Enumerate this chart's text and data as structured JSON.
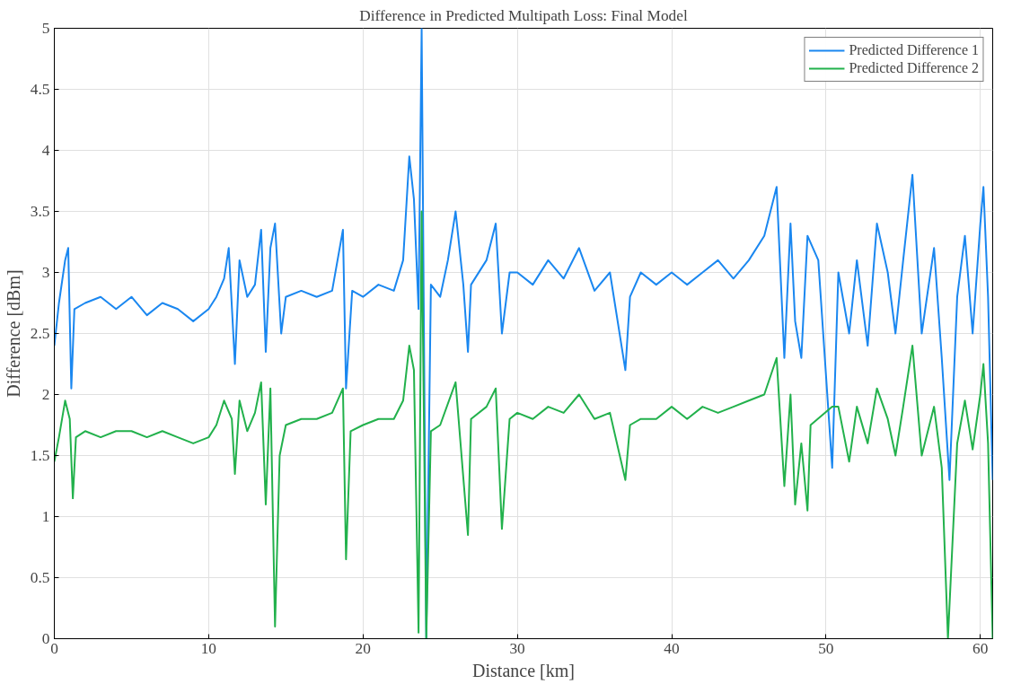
{
  "chart_data": {
    "type": "line",
    "title": "Difference in Predicted Multipath Loss: Final Model",
    "xlabel": "Distance [km]",
    "ylabel": "Difference [dBm]",
    "xlim": [
      0,
      60.8
    ],
    "xticks": [
      0,
      10,
      20,
      30,
      40,
      50,
      60
    ],
    "ylim": [
      0,
      5
    ],
    "yticks": [
      0,
      0.5,
      1,
      1.5,
      2,
      2.5,
      3,
      3.5,
      4,
      4.5,
      5
    ],
    "grid": true,
    "legend": "top right",
    "line_style": "solid",
    "marker": "none",
    "series": [
      {
        "name": "Predicted Difference 1",
        "color": "#1a87f0",
        "x": [
          0,
          0.3,
          0.7,
          0.9,
          1.1,
          1.3,
          2,
          3,
          4,
          5,
          6,
          7,
          8,
          9,
          10,
          10.5,
          11,
          11.3,
          11.7,
          12,
          12.5,
          13,
          13.4,
          13.7,
          14,
          14.3,
          14.7,
          15,
          16,
          17,
          18,
          18.7,
          18.9,
          19.3,
          20,
          21,
          22,
          22.6,
          23,
          23.3,
          23.6,
          23.8,
          24.1,
          24.4,
          25,
          25.5,
          26,
          26.5,
          26.8,
          27,
          28,
          28.6,
          29,
          29.5,
          30,
          31,
          32,
          33,
          34,
          35,
          36,
          37,
          37.3,
          38,
          39,
          40,
          41,
          42,
          43,
          44,
          45,
          46,
          46.8,
          47.3,
          47.7,
          48,
          48.4,
          48.8,
          49.5,
          50.4,
          50.8,
          51.5,
          52,
          52.7,
          53.3,
          54,
          54.5,
          55,
          55.6,
          56.2,
          57,
          57.5,
          58,
          58.5,
          59,
          59.5,
          60,
          60.2,
          60.5,
          60.8
        ],
        "values": [
          2.4,
          2.75,
          3.1,
          3.2,
          2.05,
          2.7,
          2.75,
          2.8,
          2.7,
          2.8,
          2.65,
          2.75,
          2.7,
          2.6,
          2.7,
          2.8,
          2.95,
          3.2,
          2.25,
          3.1,
          2.8,
          2.9,
          3.35,
          2.35,
          3.2,
          3.4,
          2.5,
          2.8,
          2.85,
          2.8,
          2.85,
          3.35,
          2.05,
          2.85,
          2.8,
          2.9,
          2.85,
          3.1,
          3.95,
          3.6,
          2.7,
          5,
          0,
          2.9,
          2.8,
          3.1,
          3.5,
          2.9,
          2.35,
          2.9,
          3.1,
          3.4,
          2.5,
          3.0,
          3.0,
          2.9,
          3.1,
          2.95,
          3.2,
          2.85,
          3.0,
          2.2,
          2.8,
          3.0,
          2.9,
          3.0,
          2.9,
          3.0,
          3.1,
          2.95,
          3.1,
          3.3,
          3.7,
          2.3,
          3.4,
          2.6,
          2.3,
          3.3,
          3.1,
          1.4,
          3.0,
          2.5,
          3.1,
          2.4,
          3.4,
          3.0,
          2.5,
          3.1,
          3.8,
          2.5,
          3.2,
          2.3,
          1.3,
          2.8,
          3.3,
          2.5,
          3.4,
          3.7,
          2.8,
          1.3
        ]
      },
      {
        "name": "Predicted Difference 2",
        "color": "#22b14c",
        "x": [
          0,
          0.3,
          0.7,
          1.0,
          1.2,
          1.4,
          2,
          3,
          4,
          5,
          6,
          7,
          8,
          9,
          10,
          10.5,
          11,
          11.5,
          11.7,
          12,
          12.5,
          13,
          13.4,
          13.7,
          14,
          14.3,
          14.6,
          15,
          16,
          17,
          18,
          18.7,
          18.9,
          19.2,
          20,
          21,
          22,
          22.6,
          23,
          23.3,
          23.6,
          23.8,
          24.1,
          24.4,
          25,
          26,
          26.8,
          27,
          28,
          28.6,
          29,
          29.5,
          30,
          31,
          32,
          33,
          34,
          35,
          36,
          37,
          37.3,
          38,
          39,
          40,
          41,
          42,
          43,
          44,
          45,
          46,
          46.8,
          47.3,
          47.7,
          48,
          48.4,
          48.8,
          49,
          50.4,
          50.8,
          51.5,
          52,
          52.7,
          53.3,
          54,
          54.5,
          55,
          55.6,
          56.2,
          57,
          57.5,
          57.9,
          58.5,
          59,
          59.5,
          60,
          60.2,
          60.5,
          60.8
        ],
        "values": [
          1.45,
          1.65,
          1.95,
          1.8,
          1.15,
          1.65,
          1.7,
          1.65,
          1.7,
          1.7,
          1.65,
          1.7,
          1.65,
          1.6,
          1.65,
          1.75,
          1.95,
          1.8,
          1.35,
          1.95,
          1.7,
          1.85,
          2.1,
          1.1,
          2.05,
          0.1,
          1.5,
          1.75,
          1.8,
          1.8,
          1.85,
          2.05,
          0.65,
          1.7,
          1.75,
          1.8,
          1.8,
          1.95,
          2.4,
          2.2,
          0.05,
          3.5,
          0,
          1.7,
          1.75,
          2.1,
          0.85,
          1.8,
          1.9,
          2.05,
          0.9,
          1.8,
          1.85,
          1.8,
          1.9,
          1.85,
          2.0,
          1.8,
          1.85,
          1.3,
          1.75,
          1.8,
          1.8,
          1.9,
          1.8,
          1.9,
          1.85,
          1.9,
          1.95,
          2.0,
          2.3,
          1.25,
          2.0,
          1.1,
          1.6,
          1.05,
          1.75,
          1.9,
          1.9,
          1.45,
          1.9,
          1.6,
          2.05,
          1.8,
          1.5,
          1.9,
          2.4,
          1.5,
          1.9,
          1.4,
          0,
          1.6,
          1.95,
          1.55,
          2.0,
          2.25,
          1.6,
          0
        ]
      }
    ]
  }
}
